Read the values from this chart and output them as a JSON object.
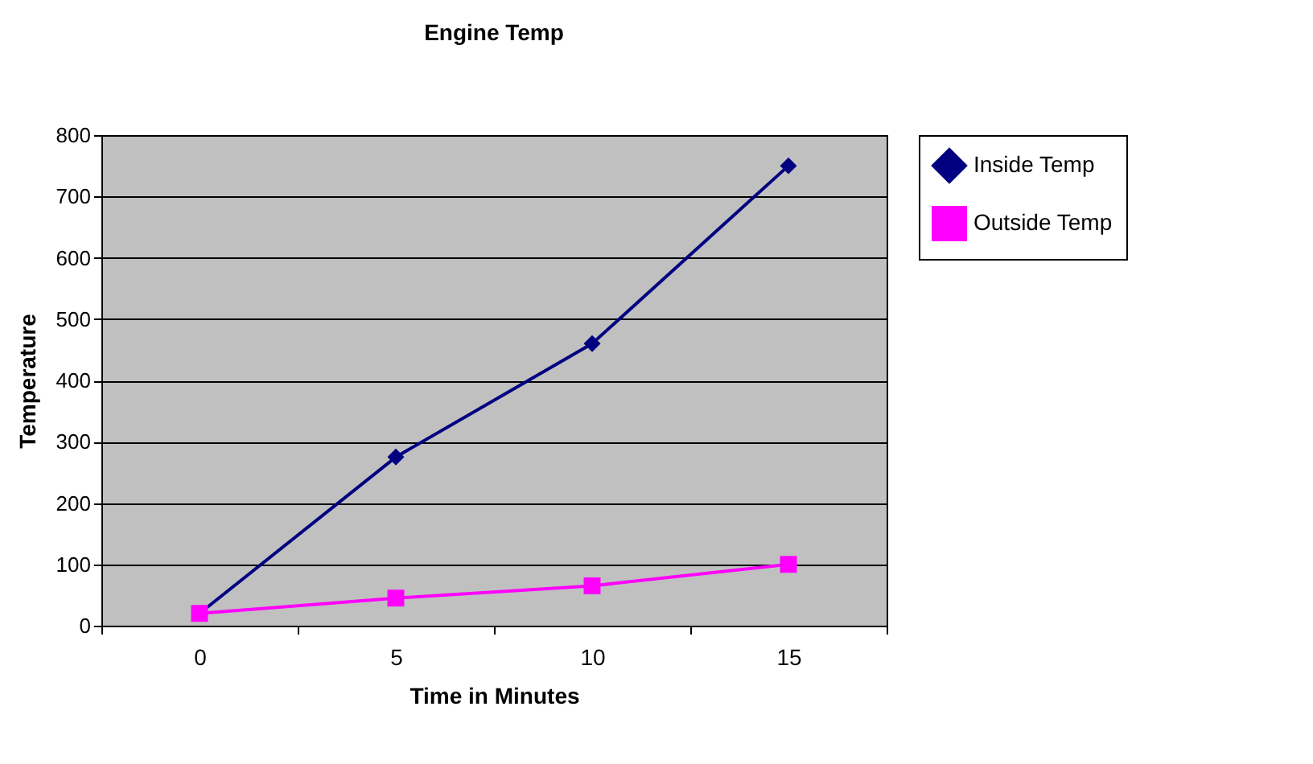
{
  "chart_data": {
    "type": "line",
    "title": "Engine Temp",
    "xlabel": "Time in Minutes",
    "ylabel": "Temperature",
    "categories": [
      "0",
      "5",
      "10",
      "15"
    ],
    "series": [
      {
        "name": "Inside Temp",
        "color": "#000080",
        "marker": "diamond",
        "values": [
          20,
          275,
          460,
          750
        ]
      },
      {
        "name": "Outside Temp",
        "color": "#ff00ff",
        "marker": "square",
        "values": [
          20,
          45,
          65,
          100
        ]
      }
    ],
    "ylim": [
      0,
      800
    ],
    "yticks": [
      0,
      100,
      200,
      300,
      400,
      500,
      600,
      700,
      800
    ],
    "grid": "y",
    "legend": "right"
  }
}
